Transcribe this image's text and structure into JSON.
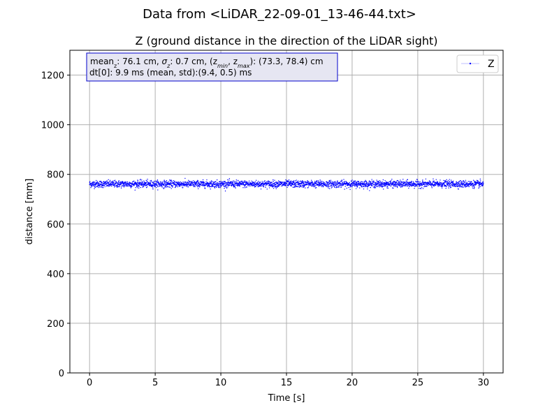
{
  "figure": {
    "suptitle": "Data from <LiDAR_22-09-01_13-46-44.txt>"
  },
  "chart_data": {
    "type": "scatter",
    "title": "Z (ground distance in the direction of the LiDAR sight)",
    "xlabel": "Time [s]",
    "ylabel": "distance [mm]",
    "xlim": [
      -1.5,
      31.5
    ],
    "ylim": [
      0,
      1300
    ],
    "xticks": [
      0,
      5,
      10,
      15,
      20,
      25,
      30
    ],
    "yticks": [
      0,
      200,
      400,
      600,
      800,
      1000,
      1200
    ],
    "xtick_labels": [
      "0",
      "5",
      "10",
      "15",
      "20",
      "25",
      "30"
    ],
    "ytick_labels": [
      "0",
      "200",
      "400",
      "600",
      "800",
      "1000",
      "1200"
    ],
    "grid": true,
    "legend": {
      "placement": "top-right",
      "entries": [
        "Z"
      ]
    },
    "series": [
      {
        "name": "Z",
        "color": "#0000ff",
        "marker": "dot",
        "x_start": 0,
        "x_end": 30,
        "sample_interval_s": 0.0099,
        "mean": 761,
        "std": 7,
        "min": 733,
        "max": 784
      }
    ],
    "annotation": {
      "line1_prefix": "mean",
      "line1_prefix_sub": "z",
      "line1_a": ": 76.1 cm, ",
      "line1_sigma": "σ",
      "line1_sigma_sub": "z",
      "line1_b": ": 0.7 cm, (z",
      "line1_min_sub": "min",
      "line1_c": ", z",
      "line1_max_sub": "max",
      "line1_d": "): (73.3, 78.4) cm",
      "line2": "dt[0]: 9.9 ms (mean, std):(9.4, 0.5) ms",
      "box_face": "#e6e6f2",
      "box_edge": "#0000cc"
    }
  }
}
